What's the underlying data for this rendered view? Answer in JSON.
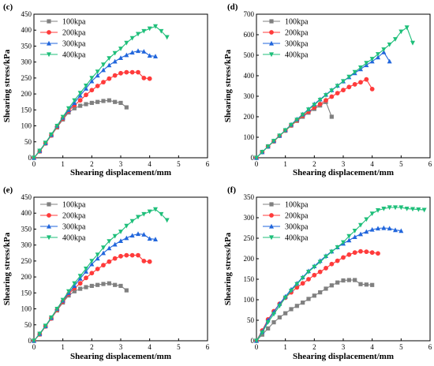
{
  "chart_data": [
    {
      "type": "line",
      "panel": "(c)",
      "xlabel": "Shearing displacement/mm",
      "ylabel": "Shearing stress/kPa",
      "xlim": [
        0,
        6
      ],
      "ylim": [
        0,
        450
      ],
      "xticks": [
        0,
        1,
        2,
        3,
        4,
        5,
        6
      ],
      "yticks": [
        0,
        50,
        100,
        150,
        200,
        250,
        300,
        350,
        400,
        450
      ],
      "legend_position": "top-left",
      "series": [
        {
          "name": "100kpa",
          "color": "#808080",
          "marker": "square",
          "x": [
            0,
            0.2,
            0.4,
            0.6,
            0.8,
            1.0,
            1.2,
            1.4,
            1.6,
            1.8,
            2.0,
            2.2,
            2.4,
            2.6,
            2.8,
            3.0,
            3.2
          ],
          "y": [
            0,
            20,
            45,
            70,
            95,
            120,
            142,
            155,
            163,
            168,
            172,
            175,
            178,
            180,
            175,
            172,
            158
          ]
        },
        {
          "name": "200kpa",
          "color": "#ff3b3b",
          "marker": "circle",
          "x": [
            0,
            0.2,
            0.4,
            0.6,
            0.8,
            1.0,
            1.2,
            1.4,
            1.6,
            1.8,
            2.0,
            2.2,
            2.4,
            2.6,
            2.8,
            3.0,
            3.2,
            3.4,
            3.6,
            3.8,
            4.0
          ],
          "y": [
            0,
            20,
            45,
            70,
            97,
            123,
            147,
            165,
            180,
            197,
            212,
            225,
            237,
            248,
            258,
            265,
            268,
            268,
            268,
            250,
            248
          ]
        },
        {
          "name": "300kpa",
          "color": "#2166dc",
          "marker": "triangle-up",
          "x": [
            0,
            0.2,
            0.4,
            0.6,
            0.8,
            1.0,
            1.2,
            1.4,
            1.6,
            1.8,
            2.0,
            2.2,
            2.4,
            2.6,
            2.8,
            3.0,
            3.2,
            3.4,
            3.6,
            3.8,
            4.0,
            4.2
          ],
          "y": [
            0,
            22,
            46,
            72,
            100,
            126,
            150,
            172,
            195,
            217,
            240,
            258,
            275,
            290,
            302,
            313,
            322,
            330,
            335,
            333,
            320,
            318
          ]
        },
        {
          "name": "400kpa",
          "color": "#1fbf7a",
          "marker": "triangle-down",
          "x": [
            0,
            0.2,
            0.4,
            0.6,
            0.8,
            1.0,
            1.2,
            1.4,
            1.6,
            1.8,
            2.0,
            2.2,
            2.4,
            2.6,
            2.8,
            3.0,
            3.2,
            3.4,
            3.6,
            3.8,
            4.0,
            4.2,
            4.4,
            4.6
          ],
          "y": [
            0,
            22,
            47,
            73,
            100,
            128,
            155,
            180,
            203,
            226,
            250,
            270,
            292,
            312,
            328,
            342,
            360,
            375,
            388,
            397,
            405,
            412,
            397,
            378
          ]
        }
      ]
    },
    {
      "type": "line",
      "panel": "(d)",
      "xlabel": "Shearing displacement/mm",
      "ylabel": "Shearing stress/kPa",
      "xlim": [
        0,
        6
      ],
      "ylim": [
        0,
        700
      ],
      "xticks": [
        0,
        1,
        2,
        3,
        4,
        5,
        6
      ],
      "yticks": [
        0,
        100,
        200,
        300,
        400,
        500,
        600,
        700
      ],
      "legend_position": "top-left",
      "series": [
        {
          "name": "100kpa",
          "color": "#808080",
          "marker": "square",
          "x": [
            0,
            0.2,
            0.4,
            0.6,
            0.8,
            1.0,
            1.2,
            1.4,
            1.6,
            1.8,
            2.0,
            2.2,
            2.4,
            2.6
          ],
          "y": [
            0,
            28,
            55,
            80,
            107,
            132,
            157,
            180,
            200,
            220,
            238,
            255,
            272,
            200
          ]
        },
        {
          "name": "200kpa",
          "color": "#ff3b3b",
          "marker": "circle",
          "x": [
            0,
            0.2,
            0.4,
            0.6,
            0.8,
            1.0,
            1.2,
            1.4,
            1.6,
            1.8,
            2.0,
            2.2,
            2.4,
            2.6,
            2.8,
            3.0,
            3.2,
            3.4,
            3.6,
            3.8,
            4.0
          ],
          "y": [
            0,
            28,
            55,
            80,
            107,
            133,
            158,
            182,
            205,
            225,
            245,
            262,
            280,
            298,
            315,
            330,
            345,
            358,
            368,
            382,
            335
          ]
        },
        {
          "name": "300kpa",
          "color": "#2166dc",
          "marker": "triangle-up",
          "x": [
            0,
            0.2,
            0.4,
            0.6,
            0.8,
            1.0,
            1.2,
            1.4,
            1.6,
            1.8,
            2.0,
            2.2,
            2.4,
            2.6,
            2.8,
            3.0,
            3.2,
            3.4,
            3.6,
            3.8,
            4.0,
            4.2,
            4.4,
            4.6
          ],
          "y": [
            0,
            28,
            55,
            82,
            108,
            135,
            162,
            188,
            212,
            237,
            262,
            285,
            308,
            330,
            352,
            373,
            393,
            413,
            432,
            452,
            470,
            490,
            515,
            470
          ]
        },
        {
          "name": "400kpa",
          "color": "#1fbf7a",
          "marker": "triangle-down",
          "x": [
            0,
            0.2,
            0.4,
            0.6,
            0.8,
            1.0,
            1.2,
            1.4,
            1.6,
            1.8,
            2.0,
            2.2,
            2.4,
            2.6,
            2.8,
            3.0,
            3.2,
            3.4,
            3.6,
            3.8,
            4.0,
            4.2,
            4.4,
            4.6,
            4.8,
            5.0,
            5.2,
            5.4
          ],
          "y": [
            0,
            28,
            55,
            82,
            108,
            134,
            160,
            185,
            210,
            235,
            258,
            282,
            305,
            328,
            350,
            373,
            395,
            418,
            440,
            462,
            482,
            505,
            528,
            552,
            578,
            615,
            635,
            560
          ]
        }
      ]
    },
    {
      "type": "line",
      "panel": "(e)",
      "xlabel": "Shearing displacement/mm",
      "ylabel": "Shearing stress/kPa",
      "xlim": [
        0,
        6
      ],
      "ylim": [
        0,
        450
      ],
      "xticks": [
        0,
        1,
        2,
        3,
        4,
        5,
        6
      ],
      "yticks": [
        0,
        50,
        100,
        150,
        200,
        250,
        300,
        350,
        400,
        450
      ],
      "legend_position": "top-left",
      "series": [
        {
          "name": "100kpa",
          "color": "#808080",
          "marker": "square",
          "x": [
            0,
            0.2,
            0.4,
            0.6,
            0.8,
            1.0,
            1.2,
            1.4,
            1.6,
            1.8,
            2.0,
            2.2,
            2.4,
            2.6,
            2.8,
            3.0,
            3.2
          ],
          "y": [
            0,
            20,
            45,
            70,
            95,
            120,
            142,
            155,
            163,
            168,
            172,
            175,
            178,
            180,
            175,
            172,
            158
          ]
        },
        {
          "name": "200kpa",
          "color": "#ff3b3b",
          "marker": "circle",
          "x": [
            0,
            0.2,
            0.4,
            0.6,
            0.8,
            1.0,
            1.2,
            1.4,
            1.6,
            1.8,
            2.0,
            2.2,
            2.4,
            2.6,
            2.8,
            3.0,
            3.2,
            3.4,
            3.6,
            3.8,
            4.0
          ],
          "y": [
            0,
            20,
            45,
            70,
            97,
            123,
            147,
            165,
            180,
            197,
            212,
            225,
            237,
            248,
            258,
            265,
            268,
            268,
            268,
            250,
            248
          ]
        },
        {
          "name": "300kpa",
          "color": "#2166dc",
          "marker": "triangle-up",
          "x": [
            0,
            0.2,
            0.4,
            0.6,
            0.8,
            1.0,
            1.2,
            1.4,
            1.6,
            1.8,
            2.0,
            2.2,
            2.4,
            2.6,
            2.8,
            3.0,
            3.2,
            3.4,
            3.6,
            3.8,
            4.0,
            4.2
          ],
          "y": [
            0,
            22,
            46,
            72,
            100,
            126,
            150,
            172,
            195,
            217,
            240,
            258,
            275,
            290,
            302,
            313,
            322,
            330,
            335,
            333,
            320,
            318
          ]
        },
        {
          "name": "400kpa",
          "color": "#1fbf7a",
          "marker": "triangle-down",
          "x": [
            0,
            0.2,
            0.4,
            0.6,
            0.8,
            1.0,
            1.2,
            1.4,
            1.6,
            1.8,
            2.0,
            2.2,
            2.4,
            2.6,
            2.8,
            3.0,
            3.2,
            3.4,
            3.6,
            3.8,
            4.0,
            4.2,
            4.4,
            4.6
          ],
          "y": [
            0,
            22,
            47,
            73,
            100,
            128,
            155,
            180,
            203,
            226,
            250,
            270,
            292,
            312,
            328,
            342,
            360,
            375,
            388,
            397,
            405,
            412,
            397,
            378
          ]
        }
      ]
    },
    {
      "type": "line",
      "panel": "(f)",
      "xlabel": "Shearing displacement/mm",
      "ylabel": "Shearing stress/kPa",
      "xlim": [
        0,
        6
      ],
      "ylim": [
        0,
        350
      ],
      "xticks": [
        0,
        1,
        2,
        3,
        4,
        5,
        6
      ],
      "yticks": [
        0,
        50,
        100,
        150,
        200,
        250,
        300,
        350
      ],
      "legend_position": "top-left",
      "series": [
        {
          "name": "100kpa",
          "color": "#808080",
          "marker": "square",
          "x": [
            0,
            0.2,
            0.4,
            0.6,
            0.8,
            1.0,
            1.2,
            1.4,
            1.6,
            1.8,
            2.0,
            2.2,
            2.4,
            2.6,
            2.8,
            3.0,
            3.2,
            3.4,
            3.6,
            3.8,
            4.0
          ],
          "y": [
            0,
            15,
            30,
            45,
            57,
            67,
            77,
            85,
            93,
            102,
            110,
            118,
            127,
            135,
            142,
            147,
            148,
            148,
            138,
            137,
            136
          ]
        },
        {
          "name": "200kpa",
          "color": "#ff3b3b",
          "marker": "circle",
          "x": [
            0,
            0.2,
            0.4,
            0.6,
            0.8,
            1.0,
            1.2,
            1.4,
            1.6,
            1.8,
            2.0,
            2.2,
            2.4,
            2.6,
            2.8,
            3.0,
            3.2,
            3.4,
            3.6,
            3.8,
            4.0,
            4.2
          ],
          "y": [
            0,
            25,
            52,
            72,
            90,
            105,
            118,
            130,
            140,
            150,
            160,
            168,
            177,
            187,
            195,
            203,
            210,
            215,
            218,
            217,
            215,
            213
          ]
        },
        {
          "name": "300kpa",
          "color": "#2166dc",
          "marker": "triangle-up",
          "x": [
            0,
            0.2,
            0.4,
            0.6,
            0.8,
            1.0,
            1.2,
            1.4,
            1.6,
            1.8,
            2.0,
            2.2,
            2.4,
            2.6,
            2.8,
            3.0,
            3.2,
            3.4,
            3.6,
            3.8,
            4.0,
            4.2,
            4.4,
            4.6,
            4.8,
            5.0
          ],
          "y": [
            0,
            22,
            50,
            70,
            90,
            108,
            125,
            140,
            155,
            170,
            182,
            195,
            207,
            218,
            228,
            237,
            245,
            253,
            260,
            266,
            271,
            274,
            275,
            274,
            270,
            268
          ]
        },
        {
          "name": "400kpa",
          "color": "#1fbf7a",
          "marker": "triangle-down",
          "x": [
            0,
            0.2,
            0.4,
            0.6,
            0.8,
            1.0,
            1.2,
            1.4,
            1.6,
            1.8,
            2.0,
            2.2,
            2.4,
            2.6,
            2.8,
            3.0,
            3.2,
            3.4,
            3.6,
            3.8,
            4.0,
            4.2,
            4.4,
            4.6,
            4.8,
            5.0,
            5.2,
            5.4,
            5.6,
            5.8
          ],
          "y": [
            0,
            20,
            45,
            65,
            85,
            105,
            122,
            138,
            153,
            168,
            180,
            192,
            205,
            217,
            228,
            240,
            255,
            268,
            282,
            296,
            310,
            318,
            322,
            325,
            325,
            325,
            322,
            321,
            320,
            319
          ]
        }
      ]
    }
  ]
}
